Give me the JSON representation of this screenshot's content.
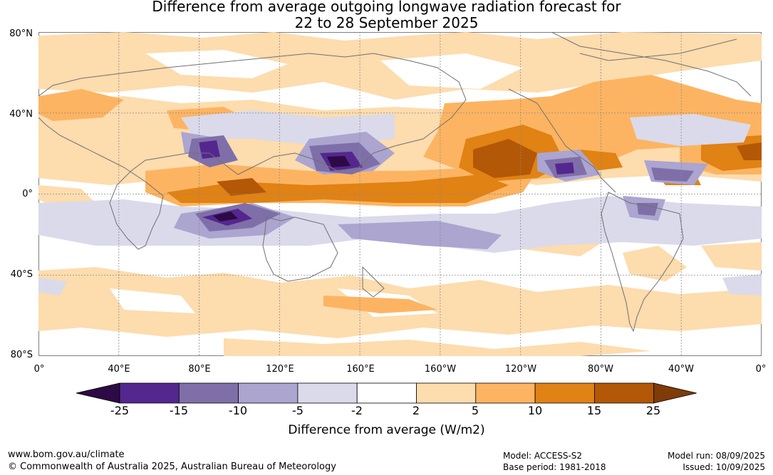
{
  "title_line1": "Difference from average outgoing longwave radiation forecast for",
  "title_line2": "22 to 28 September 2025",
  "lat_labels": [
    "80°N",
    "40°N",
    "0°",
    "40°S",
    "80°S"
  ],
  "lon_labels": [
    "0°",
    "40°E",
    "80°E",
    "120°E",
    "160°E",
    "160°W",
    "120°W",
    "80°W",
    "40°W",
    "0°"
  ],
  "colorbar": {
    "ticks": [
      "-25",
      "-15",
      "-10",
      "-5",
      "-2",
      "2",
      "5",
      "10",
      "15",
      "25"
    ],
    "colors": [
      "#2d0a45",
      "#54278f",
      "#7f6fa9",
      "#aba5d0",
      "#dadaeb",
      "#ffffff",
      "#fddcae",
      "#fdb462",
      "#e08214",
      "#b35806",
      "#7f3b08"
    ],
    "label": "Difference from average (W/m2)"
  },
  "footer": {
    "url": "www.bom.gov.au/climate",
    "copyright": "© Commonwealth of Australia 2025, Australian Bureau of Meteorology",
    "model": "Model: ACCESS-S2",
    "base_period": "Base period: 1981-2018",
    "model_run": "Model run: 08/09/2025",
    "issued": "Issued: 10/09/2025"
  },
  "map_colors": {
    "coast": "#707070",
    "grid": "#8a8a8a"
  }
}
